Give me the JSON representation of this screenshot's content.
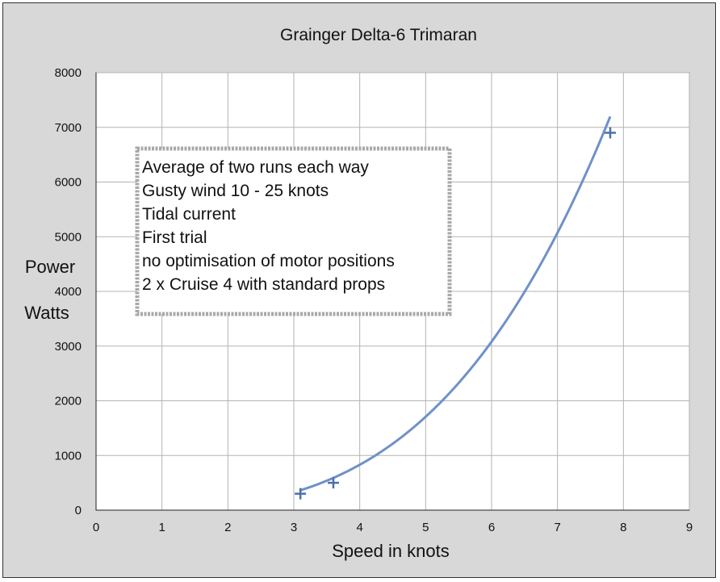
{
  "chart_data": {
    "type": "scatter",
    "title": "Grainger Delta-6 Trimaran",
    "xlabel": "Speed in knots",
    "ylabel_lines": [
      "Power",
      "Watts"
    ],
    "xlim": [
      0,
      9
    ],
    "ylim": [
      0,
      8000
    ],
    "xticks": [
      0,
      1,
      2,
      3,
      4,
      5,
      6,
      7,
      8,
      9
    ],
    "yticks": [
      0,
      1000,
      2000,
      3000,
      4000,
      5000,
      6000,
      7000,
      8000
    ],
    "grid": true,
    "points": [
      {
        "x": 3.1,
        "y": 300
      },
      {
        "x": 3.6,
        "y": 500
      },
      {
        "x": 7.8,
        "y": 6900
      }
    ],
    "trendline": {
      "type": "power",
      "coefficient": 9.36,
      "exponent": 3.235
    },
    "annotation_lines": [
      "Average of two runs each way",
      "Gusty wind 10 - 25 knots",
      "Tidal current",
      "First trial",
      "no optimisation of motor positions",
      "2 x Cruise 4 with standard props"
    ],
    "colors": {
      "frame": "#d8d8d8",
      "plot": "#ffffff",
      "grid": "#b3b3b3",
      "series": "#4a70b0",
      "trend": "#6f91c8",
      "note_border": "#a8a8a8"
    }
  }
}
